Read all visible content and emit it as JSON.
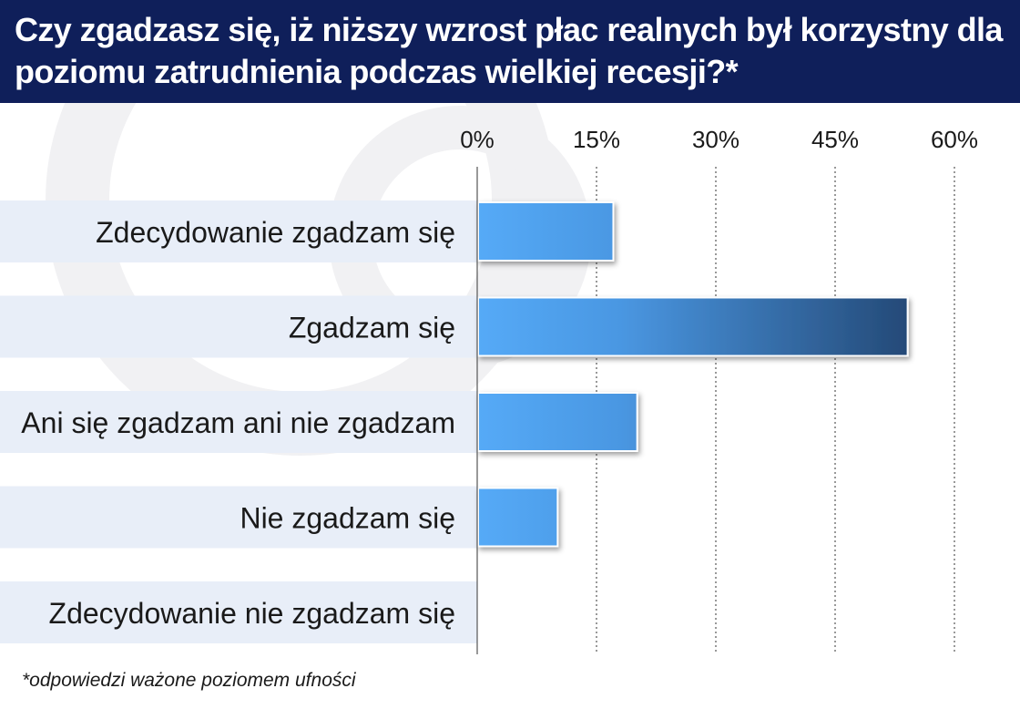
{
  "title": "Czy zgadzasz się, iż niższy wzrost płac realnych był korzystny dla poziomu zatrudnienia podczas wielkiej recesji?*",
  "footnote": "*odpowiedzi ważone poziomem ufności",
  "chart_data": {
    "type": "bar",
    "orientation": "horizontal",
    "categories": [
      "Zdecydowanie zgadzam się",
      "Zgadzam się",
      "Ani się zgadzam ani nie zgadzam",
      "Nie zgadzam się",
      "Zdecydowanie nie zgadzam się"
    ],
    "values": [
      17,
      54,
      20,
      10,
      0
    ],
    "xlim": [
      0,
      60
    ],
    "xticks": [
      0,
      15,
      30,
      45,
      60
    ],
    "xtick_labels": [
      "0%",
      "15%",
      "30%",
      "45%",
      "60%"
    ],
    "tick_position": "top",
    "grid": "vertical-dotted",
    "bar_color_light": "#55aaf7",
    "bar_color_dark": "#1e3d66",
    "row_band_color": "#e8eef8",
    "header_color": "#0f1f5a"
  }
}
